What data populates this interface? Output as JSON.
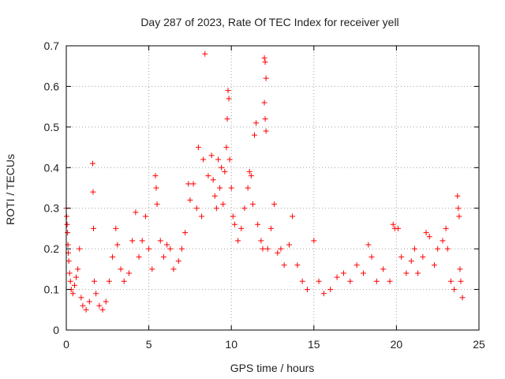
{
  "chart_data": {
    "type": "scatter",
    "title": "Day 287 of 2023, Rate Of TEC Index for receiver yell",
    "xlabel": "GPS time / hours",
    "ylabel": "ROTI / TECUs",
    "xlim": [
      0,
      25
    ],
    "ylim": [
      0,
      0.7
    ],
    "x_ticks": [
      "0",
      "5",
      "10",
      "15",
      "20",
      "25"
    ],
    "y_ticks": [
      "0",
      "0.1",
      "0.2",
      "0.3",
      "0.4",
      "0.5",
      "0.6",
      "0.7"
    ],
    "grid": true,
    "marker": "+",
    "colors": {
      "points": "#ff0000",
      "grid": "#a0a0a0",
      "axes": "#000000"
    },
    "series": [
      {
        "points": [
          [
            0.0,
            0.3
          ],
          [
            0.02,
            0.28
          ],
          [
            0.05,
            0.26
          ],
          [
            0.08,
            0.24
          ],
          [
            0.1,
            0.21
          ],
          [
            0.12,
            0.19
          ],
          [
            0.15,
            0.17
          ],
          [
            0.2,
            0.14
          ],
          [
            0.25,
            0.12
          ],
          [
            0.3,
            0.1
          ],
          [
            0.4,
            0.09
          ],
          [
            0.5,
            0.11
          ],
          [
            0.6,
            0.13
          ],
          [
            0.7,
            0.15
          ],
          [
            0.8,
            0.2
          ],
          [
            0.9,
            0.08
          ],
          [
            1.0,
            0.06
          ],
          [
            1.2,
            0.05
          ],
          [
            1.4,
            0.07
          ],
          [
            1.6,
            0.41
          ],
          [
            1.62,
            0.34
          ],
          [
            1.65,
            0.25
          ],
          [
            1.7,
            0.12
          ],
          [
            1.8,
            0.09
          ],
          [
            2.0,
            0.06
          ],
          [
            2.2,
            0.05
          ],
          [
            2.4,
            0.07
          ],
          [
            2.6,
            0.12
          ],
          [
            2.8,
            0.18
          ],
          [
            3.0,
            0.25
          ],
          [
            3.1,
            0.21
          ],
          [
            3.3,
            0.15
          ],
          [
            3.5,
            0.12
          ],
          [
            3.8,
            0.14
          ],
          [
            4.0,
            0.22
          ],
          [
            4.2,
            0.29
          ],
          [
            4.4,
            0.18
          ],
          [
            4.6,
            0.22
          ],
          [
            4.8,
            0.28
          ],
          [
            5.0,
            0.2
          ],
          [
            5.2,
            0.15
          ],
          [
            5.4,
            0.38
          ],
          [
            5.45,
            0.35
          ],
          [
            5.5,
            0.31
          ],
          [
            5.7,
            0.22
          ],
          [
            5.9,
            0.18
          ],
          [
            6.1,
            0.21
          ],
          [
            6.3,
            0.2
          ],
          [
            6.5,
            0.15
          ],
          [
            6.8,
            0.17
          ],
          [
            7.0,
            0.2
          ],
          [
            7.2,
            0.24
          ],
          [
            7.4,
            0.36
          ],
          [
            7.5,
            0.32
          ],
          [
            7.7,
            0.36
          ],
          [
            7.9,
            0.3
          ],
          [
            8.0,
            0.45
          ],
          [
            8.2,
            0.28
          ],
          [
            8.3,
            0.42
          ],
          [
            8.4,
            0.68
          ],
          [
            8.6,
            0.38
          ],
          [
            8.8,
            0.43
          ],
          [
            8.9,
            0.37
          ],
          [
            9.0,
            0.33
          ],
          [
            9.1,
            0.3
          ],
          [
            9.2,
            0.42
          ],
          [
            9.3,
            0.35
          ],
          [
            9.4,
            0.4
          ],
          [
            9.5,
            0.31
          ],
          [
            9.6,
            0.39
          ],
          [
            9.7,
            0.45
          ],
          [
            9.75,
            0.52
          ],
          [
            9.8,
            0.59
          ],
          [
            9.85,
            0.57
          ],
          [
            9.9,
            0.42
          ],
          [
            10.0,
            0.35
          ],
          [
            10.1,
            0.28
          ],
          [
            10.2,
            0.26
          ],
          [
            10.4,
            0.22
          ],
          [
            10.6,
            0.25
          ],
          [
            10.8,
            0.3
          ],
          [
            11.0,
            0.35
          ],
          [
            11.1,
            0.39
          ],
          [
            11.2,
            0.38
          ],
          [
            11.3,
            0.31
          ],
          [
            11.4,
            0.48
          ],
          [
            11.5,
            0.51
          ],
          [
            11.6,
            0.26
          ],
          [
            11.8,
            0.22
          ],
          [
            11.9,
            0.2
          ],
          [
            12.0,
            0.67
          ],
          [
            12.05,
            0.66
          ],
          [
            12.1,
            0.62
          ],
          [
            12.0,
            0.56
          ],
          [
            12.05,
            0.52
          ],
          [
            12.1,
            0.49
          ],
          [
            12.2,
            0.2
          ],
          [
            12.4,
            0.25
          ],
          [
            12.6,
            0.31
          ],
          [
            12.8,
            0.19
          ],
          [
            13.0,
            0.2
          ],
          [
            13.2,
            0.16
          ],
          [
            13.5,
            0.21
          ],
          [
            13.7,
            0.28
          ],
          [
            14.0,
            0.16
          ],
          [
            14.3,
            0.12
          ],
          [
            14.6,
            0.1
          ],
          [
            15.0,
            0.22
          ],
          [
            15.3,
            0.12
          ],
          [
            15.6,
            0.09
          ],
          [
            16.0,
            0.1
          ],
          [
            16.4,
            0.13
          ],
          [
            16.8,
            0.14
          ],
          [
            17.2,
            0.12
          ],
          [
            17.6,
            0.16
          ],
          [
            18.0,
            0.14
          ],
          [
            18.3,
            0.21
          ],
          [
            18.5,
            0.18
          ],
          [
            18.8,
            0.12
          ],
          [
            19.2,
            0.15
          ],
          [
            19.6,
            0.12
          ],
          [
            19.8,
            0.26
          ],
          [
            19.9,
            0.25
          ],
          [
            20.1,
            0.25
          ],
          [
            20.3,
            0.18
          ],
          [
            20.6,
            0.14
          ],
          [
            20.9,
            0.17
          ],
          [
            21.1,
            0.2
          ],
          [
            21.3,
            0.14
          ],
          [
            21.6,
            0.18
          ],
          [
            21.8,
            0.24
          ],
          [
            22.0,
            0.23
          ],
          [
            22.3,
            0.16
          ],
          [
            22.5,
            0.2
          ],
          [
            22.8,
            0.22
          ],
          [
            23.0,
            0.25
          ],
          [
            23.1,
            0.2
          ],
          [
            23.3,
            0.12
          ],
          [
            23.5,
            0.1
          ],
          [
            23.7,
            0.33
          ],
          [
            23.75,
            0.3
          ],
          [
            23.8,
            0.28
          ],
          [
            23.85,
            0.15
          ],
          [
            23.9,
            0.12
          ],
          [
            24.0,
            0.08
          ]
        ]
      }
    ]
  }
}
